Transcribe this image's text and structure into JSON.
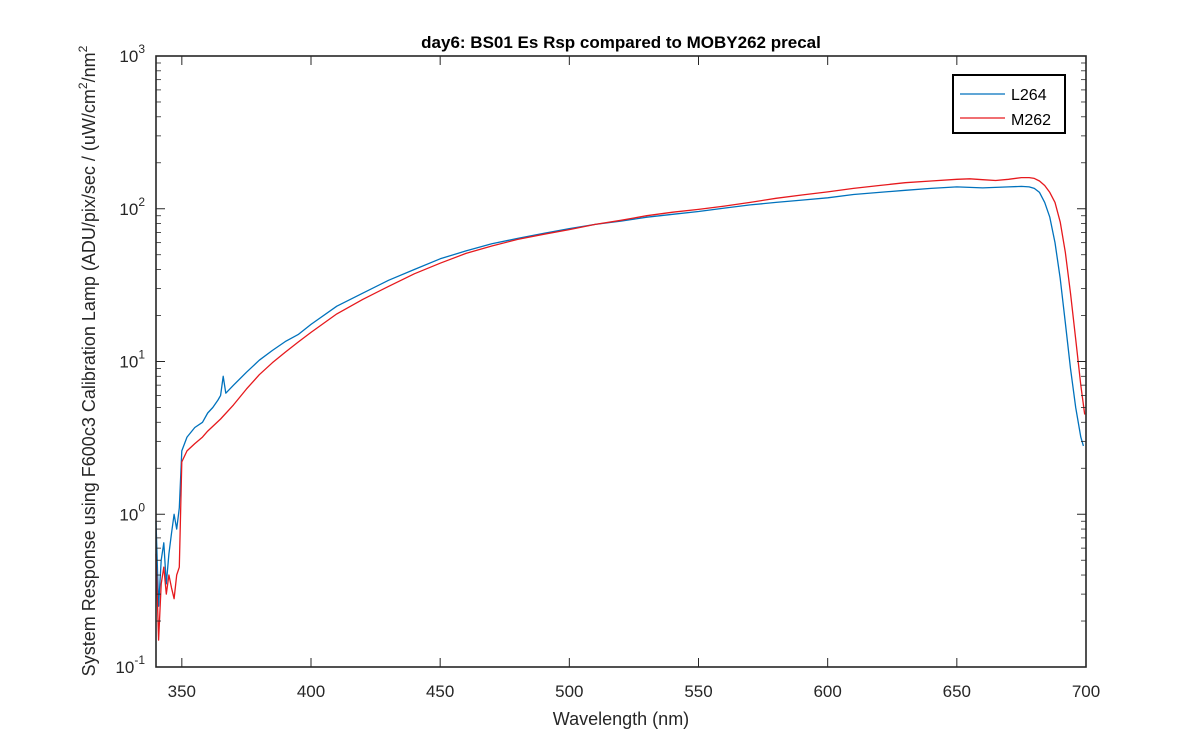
{
  "chart_data": {
    "type": "line",
    "title": "day6: BS01 Es Rsp compared to MOBY262 precal",
    "xlabel": "Wavelength (nm)",
    "ylabel_prefix": "System Response using  F600c3 Calibration Lamp  (ADU/pix/sec / (uW/cm",
    "ylabel_sup1": "2",
    "ylabel_mid": "/nm",
    "ylabel_sup2": "2",
    "xlim": [
      340,
      700
    ],
    "ylim": [
      0.1,
      1000
    ],
    "yscale": "log",
    "xticks": [
      350,
      400,
      450,
      500,
      550,
      600,
      650,
      700
    ],
    "xtick_labels": [
      "350",
      "400",
      "450",
      "500",
      "550",
      "600",
      "650",
      "700"
    ],
    "yticks": [
      0.1,
      1,
      10,
      100,
      1000
    ],
    "ytick_bases": [
      "10",
      "10",
      "10",
      "10",
      "10"
    ],
    "ytick_exponents": [
      "-1",
      "0",
      "1",
      "2",
      "3"
    ],
    "grid": false,
    "legend_position": "top-right",
    "series": [
      {
        "name": "L264",
        "color": "#0072BD",
        "x": [
          340,
          341,
          342,
          343,
          344,
          345,
          346,
          347,
          348,
          349,
          350,
          352,
          355,
          358,
          360,
          362,
          364,
          365,
          366,
          367,
          370,
          375,
          380,
          385,
          390,
          395,
          400,
          410,
          420,
          430,
          440,
          450,
          460,
          470,
          480,
          490,
          500,
          510,
          520,
          530,
          540,
          550,
          560,
          570,
          580,
          590,
          600,
          610,
          620,
          630,
          640,
          650,
          660,
          670,
          675,
          678,
          680,
          682,
          684,
          686,
          688,
          690,
          692,
          694,
          696,
          698,
          699
        ],
        "y": [
          0.9,
          0.25,
          0.5,
          0.65,
          0.35,
          0.55,
          0.75,
          1.0,
          0.8,
          1.1,
          2.6,
          3.2,
          3.7,
          4.0,
          4.6,
          5.0,
          5.6,
          6.0,
          8.0,
          6.2,
          7.0,
          8.5,
          10.2,
          11.8,
          13.5,
          15.0,
          17.5,
          23,
          28,
          34,
          40,
          47,
          53,
          59,
          64,
          69,
          74,
          79,
          83,
          88,
          92,
          96,
          101,
          106,
          110,
          114,
          118,
          124,
          128,
          132,
          136,
          139,
          137,
          139,
          140,
          139,
          136,
          128,
          110,
          88,
          60,
          35,
          18,
          9,
          5,
          3.2,
          2.8
        ]
      },
      {
        "name": "M262",
        "color": "#E6191D",
        "x": [
          340,
          341,
          342,
          343,
          344,
          345,
          346,
          347,
          348,
          349,
          350,
          352,
          355,
          358,
          360,
          365,
          370,
          375,
          380,
          385,
          390,
          395,
          400,
          410,
          420,
          430,
          440,
          450,
          460,
          470,
          480,
          490,
          500,
          510,
          520,
          530,
          540,
          550,
          560,
          570,
          580,
          590,
          600,
          610,
          620,
          630,
          640,
          650,
          655,
          660,
          665,
          670,
          675,
          678,
          680,
          682,
          684,
          686,
          688,
          690,
          692,
          694,
          696,
          698,
          699.5
        ],
        "y": [
          0.55,
          0.15,
          0.35,
          0.45,
          0.3,
          0.4,
          0.33,
          0.28,
          0.4,
          0.45,
          2.2,
          2.6,
          2.9,
          3.2,
          3.5,
          4.2,
          5.2,
          6.6,
          8.2,
          9.8,
          11.5,
          13.4,
          15.5,
          20.5,
          25.5,
          31,
          37.5,
          44,
          51,
          57,
          63,
          68,
          73,
          79,
          84,
          90,
          95,
          99,
          104,
          110,
          117,
          123,
          129,
          136,
          142,
          148,
          152,
          156,
          157,
          155,
          153,
          156,
          160,
          160,
          158,
          152,
          142,
          128,
          110,
          82,
          52,
          28,
          14,
          7,
          4.5
        ]
      }
    ]
  }
}
